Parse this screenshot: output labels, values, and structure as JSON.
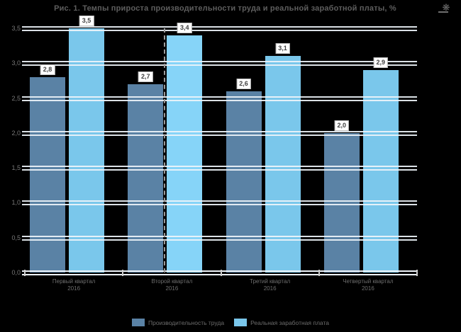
{
  "title": "Рис. 1. Темпы прироста производительности труда и реальной заработной платы, %",
  "corner_icon_glyph": "❋",
  "chart_data": {
    "type": "bar",
    "categories": [
      {
        "line1": "Первый квартал",
        "line2": "2016"
      },
      {
        "line1": "Второй квартал",
        "line2": "2016"
      },
      {
        "line1": "Третий квартал",
        "line2": "2016"
      },
      {
        "line1": "Четвертый квартал",
        "line2": "2016"
      }
    ],
    "series": [
      {
        "name": "Производительность труда",
        "color": "#5A82A5",
        "values": [
          2.8,
          2.7,
          2.6,
          2.0
        ],
        "labels": [
          "2,8",
          "2,7",
          "2,6",
          "2,0"
        ]
      },
      {
        "name": "Реальная заработная плата",
        "color": "#7AC7EB",
        "values": [
          3.5,
          3.4,
          3.1,
          2.9
        ],
        "labels": [
          "3,5",
          "3,4",
          "3,1",
          "2,9"
        ]
      }
    ],
    "highlight": {
      "series": 1,
      "category": 1,
      "color": "#86D4F8"
    },
    "annotation_dashed_line": {
      "series": 1,
      "category": 1
    },
    "ylim": [
      0,
      3.5
    ],
    "yticks": [
      "3,5",
      "3,0",
      "2,5",
      "2,0",
      "1,5",
      "1,0",
      "0,5",
      "0,0"
    ],
    "grid": true,
    "legend_position": "bottom",
    "colors": {
      "background": "#000000",
      "gridline": "#EEF3F9",
      "value_label_bg": "#FFFFFF",
      "dashed_line": "#9B9B9B",
      "text": "#6E6E6E"
    }
  }
}
